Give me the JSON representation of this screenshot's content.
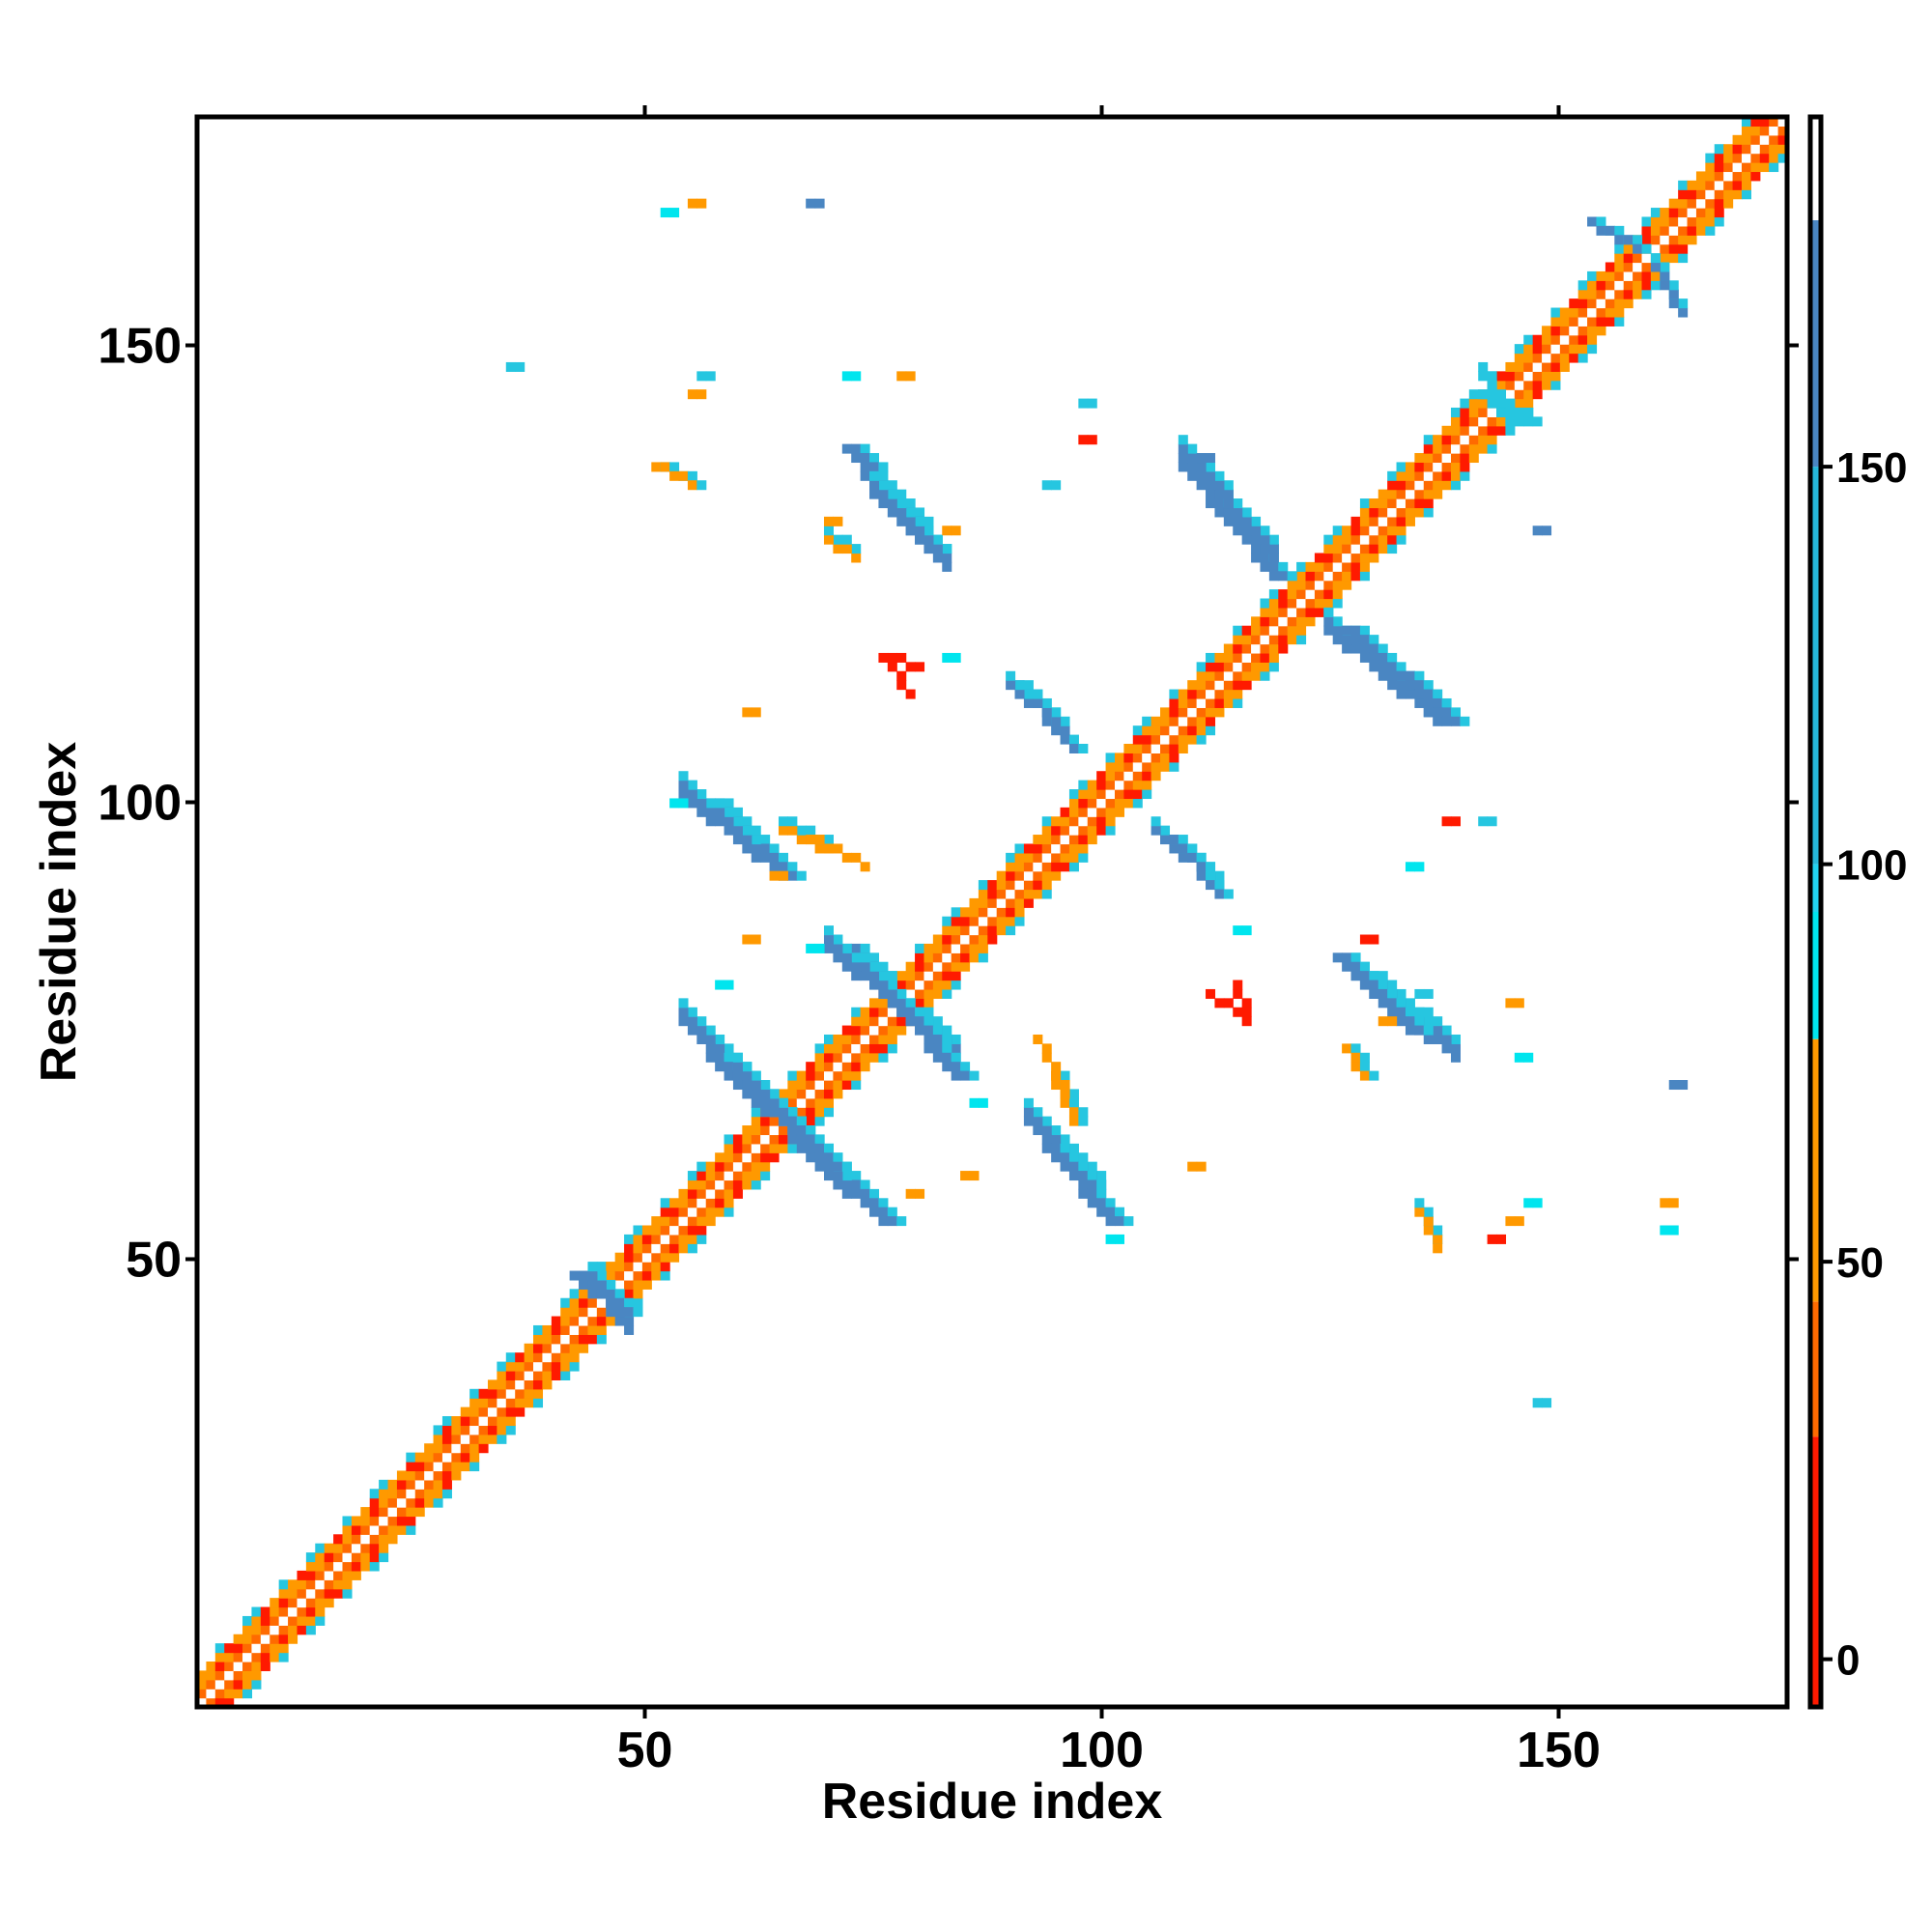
{
  "chart_data": {
    "type": "heatmap",
    "title": "",
    "xlabel": "Residue index",
    "ylabel": "Residue index",
    "xlim": [
      1,
      175
    ],
    "ylim": [
      1,
      175
    ],
    "xticks": [
      50,
      100,
      150
    ],
    "yticks": [
      50,
      100,
      150
    ],
    "grid": false,
    "colorbar": {
      "ticks": [
        0,
        50,
        100,
        150
      ],
      "range": [
        -6,
        194
      ],
      "bands": [
        {
          "from": -6,
          "to": 28,
          "color": "#ff1a00"
        },
        {
          "from": 28,
          "to": 45,
          "color": "#ff6a00"
        },
        {
          "from": 45,
          "to": 78,
          "color": "#ff9900"
        },
        {
          "from": 78,
          "to": 94,
          "color": "#00e5ee"
        },
        {
          "from": 94,
          "to": 100,
          "color": "#22d3f0"
        },
        {
          "from": 100,
          "to": 150,
          "color": "#26b7d9"
        },
        {
          "from": 150,
          "to": 181,
          "color": "#4a86c2"
        },
        {
          "from": 181,
          "to": 194,
          "color": "#ffffff"
        }
      ]
    },
    "colors": {
      "diag_main": "#ffffff",
      "diag_1": "#ff6a00",
      "diag_2": "#ff1a00",
      "diag_3": "#ff9900",
      "diag_4": "#26c6e0",
      "contact_blue": "#4a86c2",
      "contact_cyan": "#26c6e0",
      "contact_bright": "#00e5ee",
      "contact_orange": "#ff9900",
      "contact_red": "#ff1a00"
    },
    "contacts": [
      {
        "x": [
          62,
          76
        ],
        "y": [
          68,
          54
        ],
        "color": "#4a86c2",
        "width": 3
      },
      {
        "x": [
          57,
          70
        ],
        "y": [
          72,
          60
        ],
        "color": "#4a86c2",
        "width": 3
      },
      {
        "x": [
          72,
          84
        ],
        "y": [
          84,
          70
        ],
        "color": "#4a86c2",
        "width": 3
      },
      {
        "x": [
          57,
          65
        ],
        "y": [
          100,
          92
        ],
        "color": "#4a86c2",
        "width": 3
      },
      {
        "x": [
          94,
          101
        ],
        "y": [
          62,
          54
        ],
        "color": "#4a86c2",
        "width": 3
      },
      {
        "x": [
          109,
          119
        ],
        "y": [
          137,
          125
        ],
        "color": "#4a86c2",
        "width": 3
      },
      {
        "x": [
          127,
          138
        ],
        "y": [
          119,
          109
        ],
        "color": "#4a86c2",
        "width": 3
      },
      {
        "x": [
          72,
          81
        ],
        "y": [
          139,
          128
        ],
        "color": "#4a86c2",
        "width": 3
      },
      {
        "x": [
          91,
          97
        ],
        "y": [
          113,
          106
        ],
        "color": "#4a86c2",
        "width": 2
      },
      {
        "x": [
          108,
          113
        ],
        "y": [
          96,
          90
        ],
        "color": "#4a86c2",
        "width": 2
      },
      {
        "x": [
          126,
          134
        ],
        "y": [
          83,
          75
        ],
        "color": "#4a86c2",
        "width": 3
      },
      {
        "x": [
          42,
          47
        ],
        "y": [
          48,
          44
        ],
        "color": "#4a86c2",
        "width": 3
      },
      {
        "x": [
          154,
          159
        ],
        "y": [
          164,
          161
        ],
        "color": "#4a86c2",
        "width": 2
      },
      {
        "x": [
          141,
          147
        ],
        "y": [
          145,
          142
        ],
        "color": "#26c6e0",
        "width": 2
      },
      {
        "x": [
          51,
          55
        ],
        "y": [
          137,
          135
        ],
        "color": "#ff9900",
        "width": 2
      },
      {
        "x": [
          95,
          97
        ],
        "y": [
          70,
          65
        ],
        "color": "#ff9900",
        "width": 2
      },
      {
        "x": [
          127,
          129
        ],
        "y": [
          73,
          70
        ],
        "color": "#ff9900",
        "width": 2
      },
      {
        "x": [
          68,
          74
        ],
        "y": [
          96,
          93
        ],
        "color": "#ff9900",
        "width": 1
      },
      {
        "x": [
          77,
          80
        ],
        "y": [
          116,
          115
        ],
        "color": "#ff1a00",
        "width": 1
      },
      {
        "x": [
          112,
          116
        ],
        "y": [
          79,
          76
        ],
        "color": "#ff1a00",
        "width": 1
      }
    ],
    "spots": [
      {
        "x": 35,
        "y": 148,
        "color": "#26c6e0"
      },
      {
        "x": 52,
        "y": 165,
        "color": "#00e5ee"
      },
      {
        "x": 55,
        "y": 166,
        "color": "#ff9900"
      },
      {
        "x": 68,
        "y": 166,
        "color": "#4a86c2"
      },
      {
        "x": 55,
        "y": 145,
        "color": "#ff9900"
      },
      {
        "x": 56,
        "y": 147,
        "color": "#26c6e0"
      },
      {
        "x": 72,
        "y": 147,
        "color": "#00e5ee"
      },
      {
        "x": 78,
        "y": 147,
        "color": "#ff9900"
      },
      {
        "x": 98,
        "y": 144,
        "color": "#26c6e0"
      },
      {
        "x": 98,
        "y": 140,
        "color": "#ff1a00"
      },
      {
        "x": 94,
        "y": 135,
        "color": "#26c6e0"
      },
      {
        "x": 70,
        "y": 131,
        "color": "#ff9900"
      },
      {
        "x": 83,
        "y": 130,
        "color": "#ff9900"
      },
      {
        "x": 111,
        "y": 138,
        "color": "#4a86c2"
      },
      {
        "x": 148,
        "y": 130,
        "color": "#4a86c2"
      },
      {
        "x": 136,
        "y": 110,
        "color": "#4a86c2"
      },
      {
        "x": 142,
        "y": 98,
        "color": "#26c6e0"
      },
      {
        "x": 138,
        "y": 98,
        "color": "#ff1a00"
      },
      {
        "x": 134,
        "y": 93,
        "color": "#00e5ee"
      },
      {
        "x": 83,
        "y": 116,
        "color": "#00e5ee"
      },
      {
        "x": 61,
        "y": 110,
        "color": "#ff9900"
      },
      {
        "x": 53,
        "y": 100,
        "color": "#00e5ee"
      },
      {
        "x": 64,
        "y": 92,
        "color": "#ff9900"
      },
      {
        "x": 58,
        "y": 80,
        "color": "#00e5ee"
      },
      {
        "x": 61,
        "y": 85,
        "color": "#ff9900"
      },
      {
        "x": 68,
        "y": 84,
        "color": "#00e5ee"
      },
      {
        "x": 86,
        "y": 67,
        "color": "#00e5ee"
      },
      {
        "x": 79,
        "y": 57,
        "color": "#ff9900"
      },
      {
        "x": 85,
        "y": 59,
        "color": "#ff9900"
      },
      {
        "x": 101,
        "y": 52,
        "color": "#00e5ee"
      },
      {
        "x": 110,
        "y": 60,
        "color": "#ff9900"
      },
      {
        "x": 115,
        "y": 86,
        "color": "#00e5ee"
      },
      {
        "x": 129,
        "y": 85,
        "color": "#ff1a00"
      },
      {
        "x": 131,
        "y": 76,
        "color": "#ff9900"
      },
      {
        "x": 146,
        "y": 72,
        "color": "#00e5ee"
      },
      {
        "x": 145,
        "y": 78,
        "color": "#ff9900"
      },
      {
        "x": 163,
        "y": 69,
        "color": "#4a86c2"
      },
      {
        "x": 162,
        "y": 56,
        "color": "#ff9900"
      },
      {
        "x": 162,
        "y": 53,
        "color": "#00e5ee"
      },
      {
        "x": 145,
        "y": 54,
        "color": "#ff9900"
      },
      {
        "x": 147,
        "y": 56,
        "color": "#00e5ee"
      },
      {
        "x": 143,
        "y": 52,
        "color": "#ff1a00"
      },
      {
        "x": 148,
        "y": 34,
        "color": "#26c6e0"
      },
      {
        "x": 135,
        "y": 77,
        "color": "#26c6e0"
      },
      {
        "x": 135,
        "y": 79,
        "color": "#26c6e0"
      }
    ]
  }
}
